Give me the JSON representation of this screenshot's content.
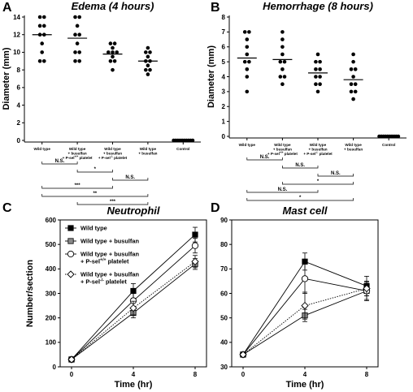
{
  "chart_data": [
    {
      "panel": "A",
      "type": "scatter",
      "title": "Edema (4 hours)",
      "ylabel": "Diameter (mm)",
      "ylim": [
        0,
        14
      ],
      "yticks": [
        "0",
        "2",
        "4",
        "6",
        "8",
        "10",
        "12",
        "14"
      ],
      "categories": [
        {
          "lines": [
            "Wild type"
          ]
        },
        {
          "lines": [
            "Wild type",
            "+ busulfan",
            "+ P-sel+/+ platelet"
          ]
        },
        {
          "lines": [
            "Wild type",
            "+ busulfan",
            "+ P-sel-/- platelet"
          ]
        },
        {
          "lines": [
            "Wild type",
            "+ busulfan"
          ]
        },
        {
          "lines": [
            "Control"
          ]
        }
      ],
      "groups": [
        {
          "points": [
            14,
            14,
            13,
            13,
            12,
            12,
            11,
            10,
            9,
            9
          ],
          "mean": 12
        },
        {
          "points": [
            14,
            14,
            13,
            12,
            12,
            11,
            10,
            10,
            9,
            9
          ],
          "mean": 11.6
        },
        {
          "points": [
            11,
            11,
            10.5,
            10,
            10,
            10,
            9.5,
            9,
            9,
            8
          ],
          "mean": 9.8
        },
        {
          "points": [
            10.5,
            10,
            10,
            9.5,
            9,
            9,
            8.5,
            8,
            8,
            7.5
          ],
          "mean": 9
        },
        {
          "points": [
            0,
            0,
            0,
            0,
            0,
            0,
            0,
            0,
            0,
            0
          ],
          "mean": 0
        }
      ],
      "comparisons": [
        {
          "from": 0,
          "to": 1,
          "label": "N.S."
        },
        {
          "from": 1,
          "to": 2,
          "label": "*"
        },
        {
          "from": 2,
          "to": 3,
          "label": "N.S."
        },
        {
          "from": 0,
          "to": 2,
          "label": "***"
        },
        {
          "from": 0,
          "to": 3,
          "label": "**"
        },
        {
          "from": 1,
          "to": 3,
          "label": "***"
        }
      ]
    },
    {
      "panel": "B",
      "type": "scatter",
      "title": "Hemorrhage (8 hours)",
      "ylabel": "Diameter (mm)",
      "ylim": [
        0,
        8
      ],
      "yticks": [
        "0",
        "1",
        "2",
        "3",
        "4",
        "5",
        "6",
        "7",
        "8"
      ],
      "categories": [
        {
          "lines": [
            "Wild type"
          ]
        },
        {
          "lines": [
            "Wild type",
            "+ busulfan",
            "+ P-sel+/+ platelet"
          ]
        },
        {
          "lines": [
            "Wild type",
            "+ busulfan",
            "+ P-sel-/- platelet"
          ]
        },
        {
          "lines": [
            "Wild type",
            "+ busulfan"
          ]
        },
        {
          "lines": [
            "Control"
          ]
        }
      ],
      "groups": [
        {
          "points": [
            7,
            7,
            6.5,
            6,
            5.5,
            5,
            5,
            4.5,
            4,
            3
          ],
          "mean": 5.25
        },
        {
          "points": [
            7,
            6.5,
            6,
            5.5,
            5,
            5,
            4.5,
            4,
            4,
            3.5
          ],
          "mean": 5.15
        },
        {
          "points": [
            5.5,
            5,
            5,
            4.5,
            4.5,
            4,
            4,
            3.5,
            3.5,
            3
          ],
          "mean": 4.25
        },
        {
          "points": [
            5.5,
            5,
            4.5,
            4.5,
            4,
            3.5,
            3.5,
            3,
            3,
            2.5
          ],
          "mean": 3.8
        },
        {
          "points": [
            0,
            0,
            0,
            0,
            0,
            0,
            0,
            0,
            0,
            0
          ],
          "mean": 0
        }
      ],
      "comparisons": [
        {
          "from": 0,
          "to": 1,
          "label": "N.S."
        },
        {
          "from": 1,
          "to": 2,
          "label": "N.S."
        },
        {
          "from": 2,
          "to": 3,
          "label": "N.S."
        },
        {
          "from": 1,
          "to": 3,
          "label": "*"
        },
        {
          "from": 0,
          "to": 2,
          "label": "N.S."
        },
        {
          "from": 0,
          "to": 3,
          "label": "*"
        }
      ]
    },
    {
      "panel": "C",
      "type": "line",
      "title": "Neutrophil",
      "xlabel": "Time (hr)",
      "ylabel": "Number/section",
      "x": [
        0,
        4,
        8
      ],
      "xticks": [
        "0",
        "4",
        "8"
      ],
      "ylim": [
        0,
        600
      ],
      "yticks": [
        "0",
        "100",
        "200",
        "300",
        "400",
        "500",
        "600"
      ],
      "series": [
        {
          "name": "Wild type",
          "values": [
            30,
            310,
            540
          ],
          "errors": [
            8,
            30,
            30
          ],
          "marker": "square-filled",
          "line": "solid"
        },
        {
          "name": "Wild type + busulfan",
          "values": [
            30,
            220,
            420
          ],
          "errors": [
            8,
            20,
            22
          ],
          "marker": "square-gray",
          "line": "solid"
        },
        {
          "name": "Wild type + busulfan + P-sel+/+ platelet",
          "values": [
            30,
            270,
            495
          ],
          "errors": [
            8,
            30,
            30
          ],
          "marker": "circle-open",
          "line": "solid"
        },
        {
          "name": "Wild type + busulfan + P-sel-/- platelet",
          "values": [
            30,
            240,
            430
          ],
          "errors": [
            8,
            28,
            25
          ],
          "marker": "diamond-open",
          "line": "dotted"
        }
      ],
      "legend": [
        {
          "lines": [
            {
              "text": "Wild type",
              "small": false
            }
          ]
        },
        {
          "lines": [
            {
              "text": "Wild type + busulfan",
              "small": false
            }
          ]
        },
        {
          "lines": [
            {
              "text": "Wild type + busulfan",
              "small": false
            },
            {
              "text": "+ P-sel+/+ platelet",
              "small": false
            }
          ]
        },
        {
          "lines": [
            {
              "text": "Wild type + busulfan",
              "small": false
            },
            {
              "text": "+ P-sel-/- platelet",
              "small": false
            }
          ]
        }
      ]
    },
    {
      "panel": "D",
      "type": "line",
      "title": "Mast cell",
      "xlabel": "Time (hr)",
      "ylabel": "",
      "x": [
        0,
        4,
        8
      ],
      "xticks": [
        "0",
        "4",
        "8"
      ],
      "ylim": [
        30,
        90
      ],
      "yticks": [
        "30",
        "40",
        "50",
        "60",
        "70",
        "80",
        "90"
      ],
      "series": [
        {
          "values": [
            35,
            73,
            63
          ],
          "errors": [
            0.5,
            3.5,
            4
          ],
          "marker": "square-filled",
          "line": "solid"
        },
        {
          "values": [
            35,
            51,
            61
          ],
          "errors": [
            0.5,
            2.5,
            3.5
          ],
          "marker": "square-gray",
          "line": "solid"
        },
        {
          "values": [
            35,
            66,
            61
          ],
          "errors": [
            0.5,
            6,
            4
          ],
          "marker": "circle-open",
          "line": "solid"
        },
        {
          "values": [
            35,
            55,
            62
          ],
          "errors": [
            0.5,
            5.5,
            3
          ],
          "marker": "diamond-open",
          "line": "dotted"
        }
      ]
    }
  ]
}
